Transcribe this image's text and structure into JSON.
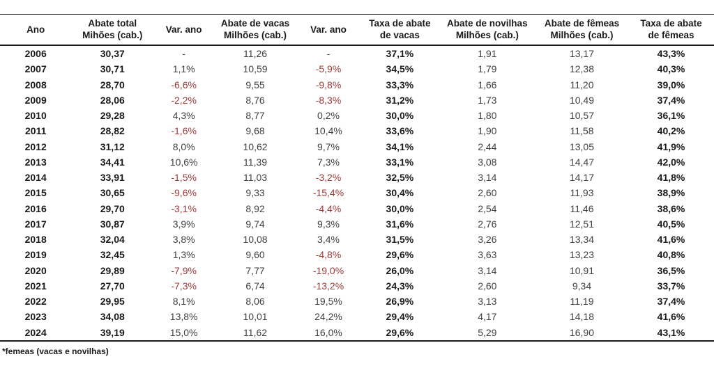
{
  "chart_data": {
    "type": "table",
    "columns": [
      {
        "line1": "Ano",
        "line2": ""
      },
      {
        "line1": "Abate total",
        "line2": "Mihões (cab.)"
      },
      {
        "line1": "Var. ano",
        "line2": ""
      },
      {
        "line1": "Abate de vacas",
        "line2": "Milhões (cab.)"
      },
      {
        "line1": "Var. ano",
        "line2": ""
      },
      {
        "line1": "Taxa de abate",
        "line2": "de vacas"
      },
      {
        "line1": "Abate de novilhas",
        "line2": "Milhões (cab.)"
      },
      {
        "line1": "Abate de fêmeas",
        "line2": "Milhões (cab.)"
      },
      {
        "line1": "Taxa de abate",
        "line2": "de fêmeas"
      }
    ],
    "rows": [
      [
        "2006",
        "30,37",
        "-",
        "11,26",
        "-",
        "37,1%",
        "1,91",
        "13,17",
        "43,3%"
      ],
      [
        "2007",
        "30,71",
        "1,1%",
        "10,59",
        "-5,9%",
        "34,5%",
        "1,79",
        "12,38",
        "40,3%"
      ],
      [
        "2008",
        "28,70",
        "-6,6%",
        "9,55",
        "-9,8%",
        "33,3%",
        "1,66",
        "11,20",
        "39,0%"
      ],
      [
        "2009",
        "28,06",
        "-2,2%",
        "8,76",
        "-8,3%",
        "31,2%",
        "1,73",
        "10,49",
        "37,4%"
      ],
      [
        "2010",
        "29,28",
        "4,3%",
        "8,77",
        "0,2%",
        "30,0%",
        "1,80",
        "10,57",
        "36,1%"
      ],
      [
        "2011",
        "28,82",
        "-1,6%",
        "9,68",
        "10,4%",
        "33,6%",
        "1,90",
        "11,58",
        "40,2%"
      ],
      [
        "2012",
        "31,12",
        "8,0%",
        "10,62",
        "9,7%",
        "34,1%",
        "2,44",
        "13,05",
        "41,9%"
      ],
      [
        "2013",
        "34,41",
        "10,6%",
        "11,39",
        "7,3%",
        "33,1%",
        "3,08",
        "14,47",
        "42,0%"
      ],
      [
        "2014",
        "33,91",
        "-1,5%",
        "11,03",
        "-3,2%",
        "32,5%",
        "3,14",
        "14,17",
        "41,8%"
      ],
      [
        "2015",
        "30,65",
        "-9,6%",
        "9,33",
        "-15,4%",
        "30,4%",
        "2,60",
        "11,93",
        "38,9%"
      ],
      [
        "2016",
        "29,70",
        "-3,1%",
        "8,92",
        "-4,4%",
        "30,0%",
        "2,54",
        "11,46",
        "38,6%"
      ],
      [
        "2017",
        "30,87",
        "3,9%",
        "9,74",
        "9,3%",
        "31,6%",
        "2,76",
        "12,51",
        "40,5%"
      ],
      [
        "2018",
        "32,04",
        "3,8%",
        "10,08",
        "3,4%",
        "31,5%",
        "3,26",
        "13,34",
        "41,6%"
      ],
      [
        "2019",
        "32,45",
        "1,3%",
        "9,60",
        "-4,8%",
        "29,6%",
        "3,63",
        "13,23",
        "40,8%"
      ],
      [
        "2020",
        "29,89",
        "-7,9%",
        "7,77",
        "-19,0%",
        "26,0%",
        "3,14",
        "10,91",
        "36,5%"
      ],
      [
        "2021",
        "27,70",
        "-7,3%",
        "6,74",
        "-13,2%",
        "24,3%",
        "2,60",
        "9,34",
        "33,7%"
      ],
      [
        "2022",
        "29,95",
        "8,1%",
        "8,06",
        "19,5%",
        "26,9%",
        "3,13",
        "11,19",
        "37,4%"
      ],
      [
        "2023",
        "34,08",
        "13,8%",
        "10,01",
        "24,2%",
        "29,4%",
        "4,17",
        "14,18",
        "41,6%"
      ],
      [
        "2024",
        "39,19",
        "15,0%",
        "11,62",
        "16,0%",
        "29,6%",
        "5,29",
        "16,90",
        "43,1%"
      ]
    ],
    "column_widths_percent": [
      10,
      11.5,
      8.5,
      11.5,
      9,
      11,
      13.5,
      13,
      12
    ],
    "legend_position": "none",
    "grid": "horizontal-rules-only"
  },
  "footnote": {
    "text": "*femeas (vacas e novilhas)"
  },
  "styles": {
    "negative_color": "#9c3a38",
    "body_text_color": "#3f3f3f",
    "strong_text_color": "#1a1a1a",
    "rule_color": "#1a1a1a",
    "background_color": "#ffffff"
  }
}
